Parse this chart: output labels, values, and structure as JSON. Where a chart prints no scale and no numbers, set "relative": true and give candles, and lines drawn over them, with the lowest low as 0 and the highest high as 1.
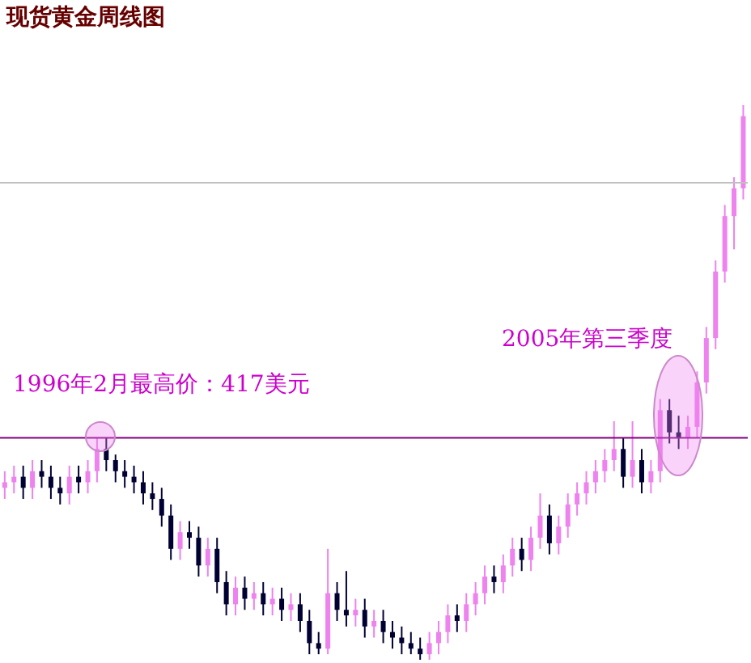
{
  "chart_data": {
    "type": "candlestick",
    "title": "现货黄金周线图",
    "relative": true,
    "annotations": [
      "1996年2月最高价：417美元",
      "2005年第三季度"
    ],
    "categories": [
      null,
      null,
      null,
      null,
      null,
      null,
      null,
      null,
      null,
      null,
      null,
      null,
      null,
      null,
      null,
      null,
      null,
      null,
      null,
      null,
      null,
      null,
      null,
      null,
      null,
      null,
      null,
      null,
      null,
      null,
      null,
      null,
      null,
      null,
      null,
      null,
      null,
      null,
      null,
      null,
      null,
      null,
      null,
      null,
      null,
      null,
      null,
      null,
      null,
      null,
      null,
      null,
      null,
      null,
      null,
      null,
      null,
      null,
      null,
      null,
      null,
      null,
      null,
      null,
      null,
      null,
      null,
      null,
      null,
      null,
      null,
      null,
      null,
      null,
      null,
      null,
      null,
      null,
      null,
      null,
      null
    ],
    "ohlc": [
      [
        0.31,
        0.34,
        0.29,
        0.32
      ],
      [
        0.32,
        0.35,
        0.3,
        0.33
      ],
      [
        0.33,
        0.35,
        0.29,
        0.31
      ],
      [
        0.31,
        0.36,
        0.29,
        0.34
      ],
      [
        0.34,
        0.36,
        0.31,
        0.33
      ],
      [
        0.33,
        0.35,
        0.29,
        0.31
      ],
      [
        0.31,
        0.33,
        0.28,
        0.3
      ],
      [
        0.3,
        0.35,
        0.28,
        0.33
      ],
      [
        0.33,
        0.35,
        0.3,
        0.32
      ],
      [
        0.32,
        0.36,
        0.3,
        0.34
      ],
      [
        0.34,
        0.4,
        0.32,
        0.38
      ],
      [
        0.38,
        0.4,
        0.34,
        0.36
      ],
      [
        0.36,
        0.37,
        0.32,
        0.34
      ],
      [
        0.34,
        0.36,
        0.31,
        0.33
      ],
      [
        0.33,
        0.35,
        0.3,
        0.32
      ],
      [
        0.32,
        0.34,
        0.28,
        0.3
      ],
      [
        0.3,
        0.32,
        0.27,
        0.29
      ],
      [
        0.29,
        0.31,
        0.24,
        0.26
      ],
      [
        0.26,
        0.28,
        0.18,
        0.2
      ],
      [
        0.2,
        0.25,
        0.18,
        0.23
      ],
      [
        0.23,
        0.25,
        0.2,
        0.22
      ],
      [
        0.22,
        0.24,
        0.15,
        0.17
      ],
      [
        0.17,
        0.22,
        0.15,
        0.2
      ],
      [
        0.2,
        0.22,
        0.12,
        0.14
      ],
      [
        0.14,
        0.16,
        0.08,
        0.1
      ],
      [
        0.1,
        0.15,
        0.08,
        0.13
      ],
      [
        0.13,
        0.15,
        0.09,
        0.11
      ],
      [
        0.11,
        0.14,
        0.09,
        0.12
      ],
      [
        0.12,
        0.14,
        0.08,
        0.1
      ],
      [
        0.1,
        0.13,
        0.08,
        0.11
      ],
      [
        0.11,
        0.13,
        0.07,
        0.09
      ],
      [
        0.09,
        0.12,
        0.07,
        0.1
      ],
      [
        0.1,
        0.12,
        0.05,
        0.07
      ],
      [
        0.07,
        0.09,
        0.01,
        0.03
      ],
      [
        0.03,
        0.05,
        0.01,
        0.02
      ],
      [
        0.02,
        0.2,
        0.01,
        0.12
      ],
      [
        0.12,
        0.14,
        0.07,
        0.09
      ],
      [
        0.09,
        0.16,
        0.06,
        0.08
      ],
      [
        0.08,
        0.11,
        0.06,
        0.09
      ],
      [
        0.09,
        0.11,
        0.04,
        0.06
      ],
      [
        0.06,
        0.09,
        0.04,
        0.07
      ],
      [
        0.07,
        0.09,
        0.03,
        0.05
      ],
      [
        0.05,
        0.07,
        0.02,
        0.04
      ],
      [
        0.04,
        0.06,
        0.01,
        0.03
      ],
      [
        0.03,
        0.05,
        0.01,
        0.02
      ],
      [
        0.02,
        0.04,
        0.0,
        0.01
      ],
      [
        0.01,
        0.05,
        0.0,
        0.03
      ],
      [
        0.03,
        0.07,
        0.01,
        0.05
      ],
      [
        0.05,
        0.1,
        0.03,
        0.08
      ],
      [
        0.08,
        0.1,
        0.05,
        0.07
      ],
      [
        0.07,
        0.12,
        0.05,
        0.1
      ],
      [
        0.1,
        0.14,
        0.08,
        0.12
      ],
      [
        0.12,
        0.17,
        0.1,
        0.15
      ],
      [
        0.15,
        0.17,
        0.12,
        0.14
      ],
      [
        0.14,
        0.19,
        0.12,
        0.17
      ],
      [
        0.17,
        0.22,
        0.15,
        0.2
      ],
      [
        0.2,
        0.22,
        0.16,
        0.18
      ],
      [
        0.18,
        0.24,
        0.16,
        0.22
      ],
      [
        0.22,
        0.3,
        0.2,
        0.26
      ],
      [
        0.26,
        0.28,
        0.19,
        0.21
      ],
      [
        0.21,
        0.26,
        0.19,
        0.24
      ],
      [
        0.24,
        0.3,
        0.22,
        0.28
      ],
      [
        0.28,
        0.32,
        0.26,
        0.3
      ],
      [
        0.3,
        0.34,
        0.28,
        0.32
      ],
      [
        0.32,
        0.36,
        0.3,
        0.34
      ],
      [
        0.34,
        0.38,
        0.32,
        0.36
      ],
      [
        0.36,
        0.43,
        0.34,
        0.38
      ],
      [
        0.38,
        0.4,
        0.31,
        0.33
      ],
      [
        0.33,
        0.43,
        0.31,
        0.36
      ],
      [
        0.36,
        0.38,
        0.3,
        0.32
      ],
      [
        0.32,
        0.36,
        0.3,
        0.34
      ],
      [
        0.34,
        0.47,
        0.32,
        0.45
      ],
      [
        0.45,
        0.47,
        0.39,
        0.41
      ],
      [
        0.41,
        0.44,
        0.38,
        0.4
      ],
      [
        0.4,
        0.44,
        0.38,
        0.42
      ],
      [
        0.42,
        0.52,
        0.4,
        0.5
      ],
      [
        0.5,
        0.6,
        0.48,
        0.58
      ],
      [
        0.58,
        0.72,
        0.56,
        0.7
      ],
      [
        0.7,
        0.82,
        0.68,
        0.8
      ],
      [
        0.8,
        0.87,
        0.74,
        0.85
      ],
      [
        0.85,
        1.0,
        0.83,
        0.98
      ]
    ],
    "colors": [
      "#ee82ee",
      "#ee82ee",
      "#000033",
      "#ee82ee",
      "#000033",
      "#000033",
      "#000033",
      "#ee82ee",
      "#000033",
      "#ee82ee",
      "#ee82ee",
      "#000033",
      "#000033",
      "#000033",
      "#000033",
      "#000033",
      "#000033",
      "#000033",
      "#000033",
      "#ee82ee",
      "#000033",
      "#000033",
      "#ee82ee",
      "#000033",
      "#000033",
      "#ee82ee",
      "#000033",
      "#ee82ee",
      "#000033",
      "#ee82ee",
      "#000033",
      "#ee82ee",
      "#000033",
      "#000033",
      "#000033",
      "#ee82ee",
      "#000033",
      "#000033",
      "#ee82ee",
      "#000033",
      "#ee82ee",
      "#000033",
      "#000033",
      "#000033",
      "#000033",
      "#000033",
      "#ee82ee",
      "#ee82ee",
      "#ee82ee",
      "#000033",
      "#ee82ee",
      "#ee82ee",
      "#ee82ee",
      "#000033",
      "#ee82ee",
      "#ee82ee",
      "#000033",
      "#ee82ee",
      "#ee82ee",
      "#000033",
      "#ee82ee",
      "#ee82ee",
      "#ee82ee",
      "#ee82ee",
      "#ee82ee",
      "#ee82ee",
      "#ee82ee",
      "#000033",
      "#ee82ee",
      "#000033",
      "#ee82ee",
      "#ee82ee",
      "#000033",
      "#000033",
      "#ee82ee",
      "#ee82ee",
      "#ee82ee",
      "#ee82ee",
      "#ee82ee",
      "#ee82ee",
      "#ee82ee"
    ],
    "ref_lines": [
      {
        "axis": "y",
        "value": 0.4,
        "color": "#800080"
      },
      {
        "axis": "y",
        "value": 0.86,
        "color": "#c0c0c0"
      }
    ]
  }
}
